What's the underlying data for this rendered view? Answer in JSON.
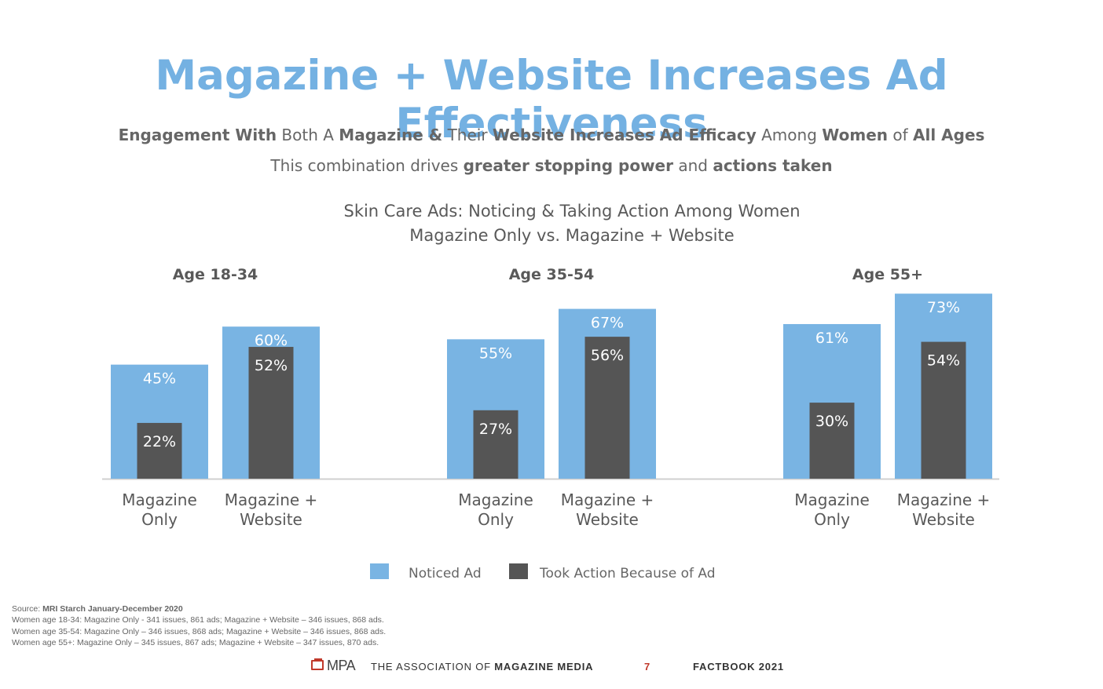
{
  "title": "Magazine + Website Increases Ad Effectiveness",
  "subtitle_line1": [
    {
      "text": "Engagement With",
      "bold": true
    },
    {
      "text": " Both A ",
      "bold": false
    },
    {
      "text": "Magazine &",
      "bold": true
    },
    {
      "text": " Their ",
      "bold": false
    },
    {
      "text": "Website Increases Ad Efficacy",
      "bold": true
    },
    {
      "text": " Among ",
      "bold": false
    },
    {
      "text": "Women",
      "bold": true
    },
    {
      "text": " of ",
      "bold": false
    },
    {
      "text": "All Ages",
      "bold": true
    }
  ],
  "subtitle_line2": [
    {
      "text": "This combination drives ",
      "bold": false
    },
    {
      "text": "greater stopping power",
      "bold": true
    },
    {
      "text": " and ",
      "bold": false
    },
    {
      "text": "actions taken",
      "bold": true
    }
  ],
  "colors": {
    "title": "#74b1e2",
    "noticed": "#79b4e3",
    "action": "#555555",
    "axis": "#d0d0d0",
    "text": "#666666"
  },
  "chart_data": {
    "type": "bar",
    "title": "Skin Care Ads: Noticing & Taking Action Among Women",
    "subtitle": "Magazine Only vs. Magazine + Website",
    "ylim": [
      0,
      100
    ],
    "value_suffix": "%",
    "groups": [
      {
        "label": "Age 18-34",
        "bars": [
          {
            "category": "Magazine Only",
            "noticed": 45,
            "action": 22
          },
          {
            "category": "Magazine + Website",
            "noticed": 60,
            "action": 52
          }
        ]
      },
      {
        "label": "Age 35-54",
        "bars": [
          {
            "category": "Magazine Only",
            "noticed": 55,
            "action": 27
          },
          {
            "category": "Magazine + Website",
            "noticed": 67,
            "action": 56
          }
        ]
      },
      {
        "label": "Age 55+",
        "bars": [
          {
            "category": "Magazine Only",
            "noticed": 61,
            "action": 30
          },
          {
            "category": "Magazine + Website",
            "noticed": 73,
            "action": 54
          }
        ]
      }
    ],
    "category_labels": [
      [
        "Magazine",
        "Only"
      ],
      [
        "Magazine +",
        "Website"
      ]
    ],
    "legend": [
      {
        "key": "noticed",
        "label": "Noticed Ad"
      },
      {
        "key": "action",
        "label": "Took Action Because of Ad"
      }
    ]
  },
  "source": {
    "prefix": "Source: ",
    "name": "MRI Starch January-December 2020",
    "lines": [
      "Women age 18-34: Magazine Only - 341 issues, 861 ads; Magazine + Website – 346 issues, 868 ads.",
      "Women age 35-54: Magazine Only – 346 issues, 868 ads; Magazine + Website – 346 issues, 868 ads.",
      "Women age 55+: Magazine Only – 345 issues, 867 ads; Magazine + Website – 347 issues, 870 ads."
    ]
  },
  "footer": {
    "logo_text": "MPA",
    "assoc_prefix": "THE ASSOCIATION OF ",
    "assoc_bold": "MAGAZINE MEDIA",
    "page_number": "7",
    "factbook": "FACTBOOK 2021"
  }
}
